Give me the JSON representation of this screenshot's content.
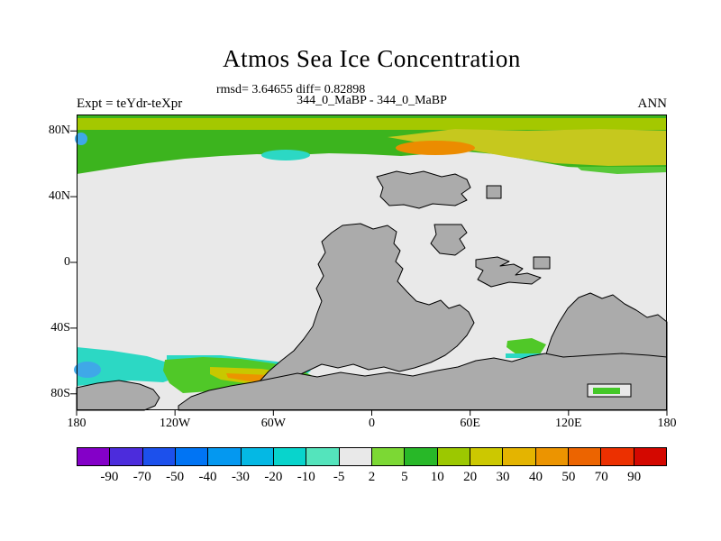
{
  "chart_data": {
    "type": "heatmap",
    "title": "Atmos Sea Ice Concentration",
    "stats_text": "rmsd= 3.64655 diff= 0.82898",
    "rmsd": 3.64655,
    "diff": 0.82898,
    "experiment_text": "Expt = teYdr-teXpr",
    "comparison": "344_0_MaBP - 344_0_MaBP",
    "season": "ANN",
    "x_axis": {
      "ticks": [
        {
          "label": "180",
          "lon": -180
        },
        {
          "label": "120W",
          "lon": -120
        },
        {
          "label": "60W",
          "lon": -60
        },
        {
          "label": "0",
          "lon": 0
        },
        {
          "label": "60E",
          "lon": 60
        },
        {
          "label": "120E",
          "lon": 120
        },
        {
          "label": "180",
          "lon": 180
        }
      ]
    },
    "y_axis": {
      "ticks": [
        {
          "label": "80N",
          "lat": 80
        },
        {
          "label": "40N",
          "lat": 40
        },
        {
          "label": "0",
          "lat": 0
        },
        {
          "label": "40S",
          "lat": -40
        },
        {
          "label": "80S",
          "lat": -80
        }
      ]
    },
    "colorbar": {
      "levels": [
        -90,
        -70,
        -50,
        -40,
        -30,
        -20,
        -10,
        -5,
        2,
        5,
        10,
        20,
        30,
        40,
        50,
        70,
        90
      ],
      "colors": [
        "#8400c8",
        "#4c2cdc",
        "#1c50ec",
        "#0074f4",
        "#0498f0",
        "#04b8e4",
        "#08d4cc",
        "#54e4bc",
        "#e9e9e9",
        "#7cd834",
        "#28b828",
        "#9cc800",
        "#ccc800",
        "#e4b400",
        "#ec9400",
        "#ec6400",
        "#ec3000",
        "#d40800"
      ]
    },
    "map": {
      "ocean_color": "#e9e9e9",
      "land_color": "#ababab",
      "anomaly_regions": [
        {
          "region": "Arctic band 62N-90N, all longitudes",
          "anomaly": "+2 to +50: green and yellow-green, yellow across 20W-180E, orange core about +45 near 10E-45E 70N, cyan dip about -8 near 65W 65N"
        },
        {
          "region": "Southern Ocean 180-115W, 55S-75S",
          "anomaly": "-5 to -30: cyan with small blue core near 175W"
        },
        {
          "region": "Southern Ocean 120W-40W, 55S-78S",
          "anomaly": "+2 to +45: green strip with yellow-orange core near 95W-45W 70S"
        },
        {
          "region": "Southern Ocean near 80E, 48S-56S",
          "anomaly": "+5 to +10: green patch with cyan fringe"
        },
        {
          "region": "Southern Ocean 150E-180, 47S-70S",
          "anomaly": "-8 to +8: cyan patch with green core"
        },
        {
          "region": "Other ocean",
          "anomaly": "-5 to +2: near zero, light gray"
        }
      ]
    }
  }
}
